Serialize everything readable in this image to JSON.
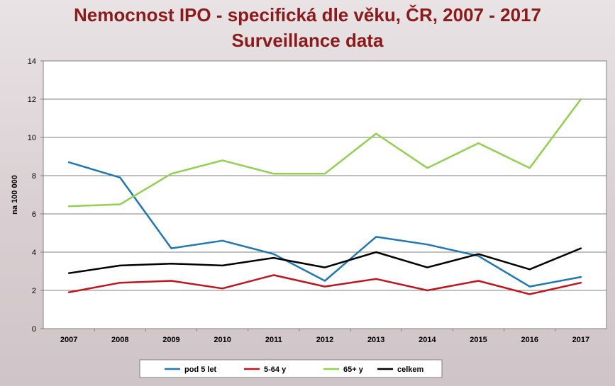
{
  "title_line_1": "Nemocnost IPO - specifická dle věku, ČR, 2007 - 2017",
  "title_line_2": "Surveillance data",
  "colors": {
    "title": "#8b1a1a",
    "pod 5 let": "#1f77b4",
    "5-64 y": "#c0141e",
    "65+ y": "#92d050",
    "celkem": "#000000"
  },
  "chart_data": {
    "type": "line",
    "ylabel": "na 100 000",
    "xlabel": "",
    "ylim": [
      0,
      14
    ],
    "yticks": [
      0,
      2,
      4,
      6,
      8,
      10,
      12,
      14
    ],
    "grid": "horizontal",
    "legend_placement": "bottom",
    "categories": [
      "2007",
      "2008",
      "2009",
      "2010",
      "2011",
      "2012",
      "2013",
      "2014",
      "2015",
      "2016",
      "2017"
    ],
    "series": [
      {
        "name": "pod 5 let",
        "values": [
          8.7,
          7.9,
          4.2,
          4.6,
          3.9,
          2.5,
          4.8,
          4.4,
          3.8,
          2.2,
          2.7
        ]
      },
      {
        "name": "5-64 y",
        "values": [
          1.9,
          2.4,
          2.5,
          2.1,
          2.8,
          2.2,
          2.6,
          2.0,
          2.5,
          1.8,
          2.4
        ]
      },
      {
        "name": "65+ y",
        "values": [
          6.4,
          6.5,
          8.1,
          8.8,
          8.1,
          8.1,
          10.2,
          8.4,
          9.7,
          8.4,
          12.0
        ]
      },
      {
        "name": "celkem",
        "values": [
          2.9,
          3.3,
          3.4,
          3.3,
          3.7,
          3.2,
          4.0,
          3.2,
          3.9,
          3.1,
          4.2
        ]
      }
    ]
  }
}
